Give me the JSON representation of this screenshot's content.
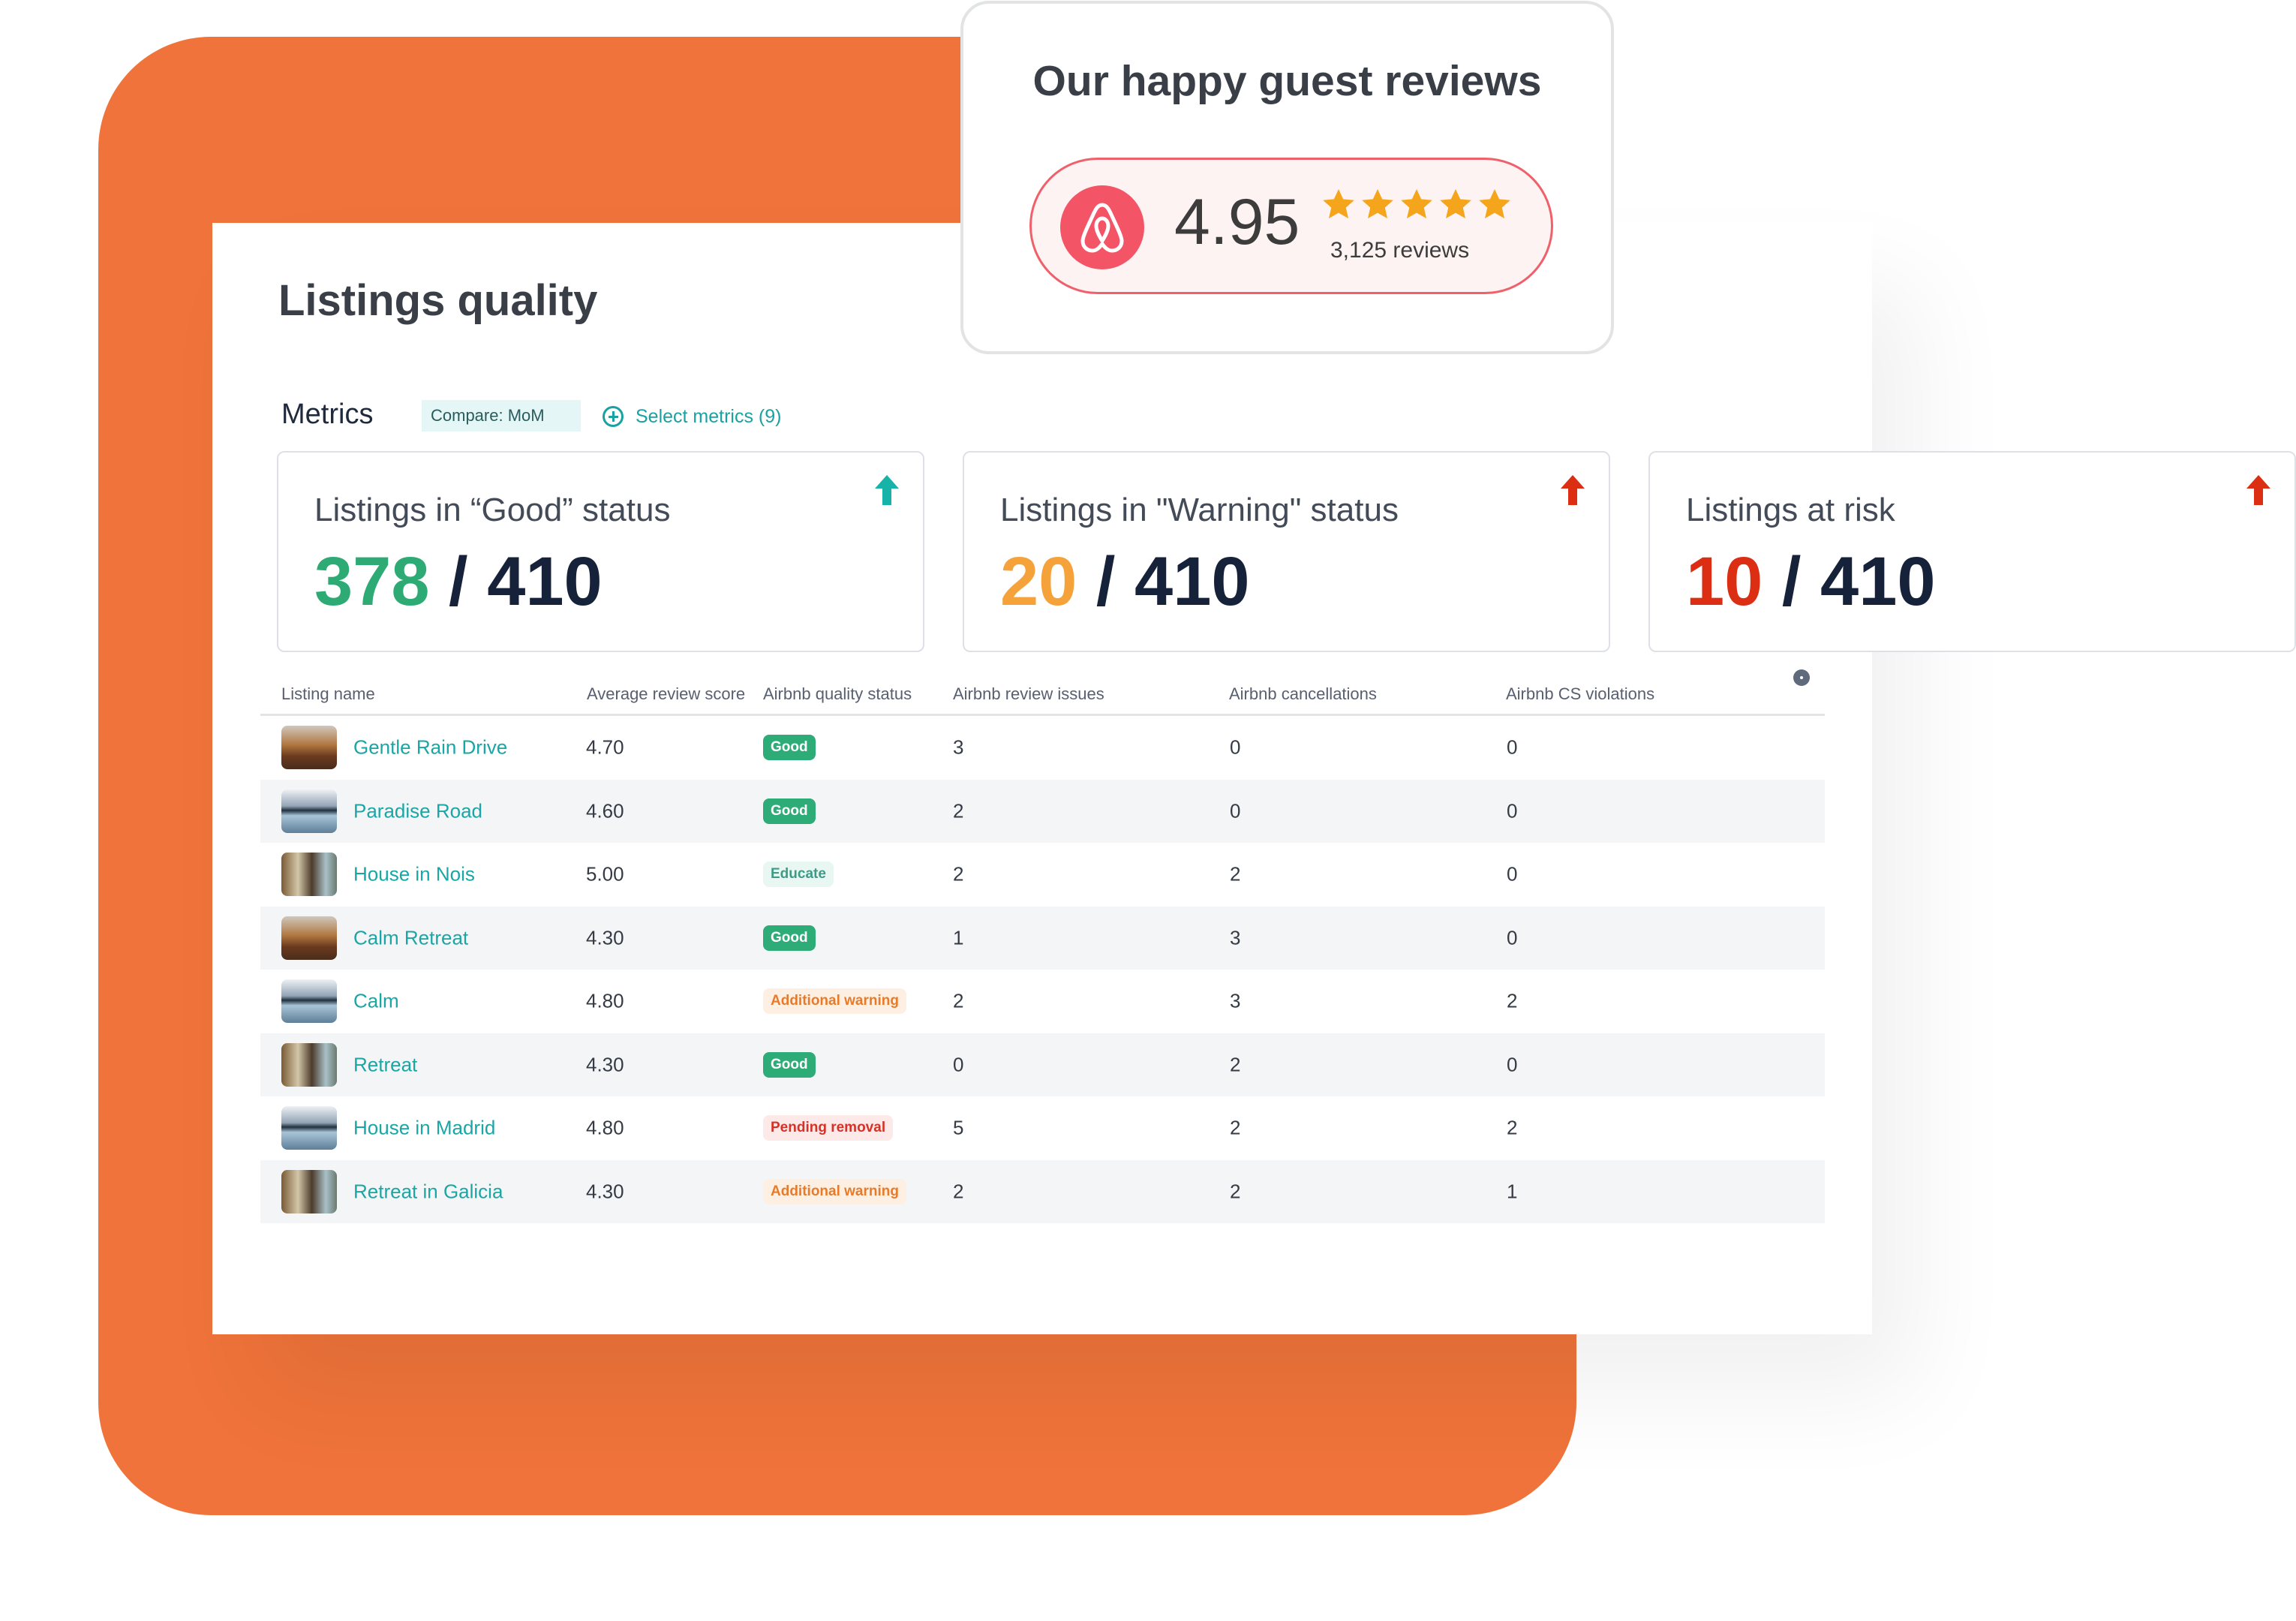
{
  "colors": {
    "brand_orange": "#ef733a",
    "teal": "#1ba6a6",
    "good": "#2eaa74",
    "warning": "#f5a23a",
    "risk": "#db2e13",
    "airbnb": "#f45566"
  },
  "reviews_card": {
    "title": "Our happy guest reviews",
    "logo_icon": "airbnb-logo-icon",
    "rating": "4.95",
    "stars": 5,
    "reviews_count": "3,125 reviews"
  },
  "panel": {
    "title": "Listings quality",
    "metrics_label": "Metrics",
    "compare_chip": "Compare: MoM",
    "select_metrics": "Select metrics (9)"
  },
  "stats": [
    {
      "label": "Listings in “Good” status",
      "value": "378",
      "separator": " / ",
      "total": "410",
      "trend": "up",
      "trend_color": "#18b3a8"
    },
    {
      "label": "Listings in \"Warning\" status",
      "value": "20",
      "separator": " / ",
      "total": "410",
      "trend": "up",
      "trend_color": "#db2e13"
    },
    {
      "label": "Listings at risk",
      "value": "10",
      "separator": " / ",
      "total": "410",
      "trend": "up",
      "trend_color": "#db2e13"
    }
  ],
  "table": {
    "columns": [
      "Listing name",
      "Average review score",
      "Airbnb quality status",
      "Airbnb review issues",
      "Airbnb cancellations",
      "Airbnb CS violations"
    ],
    "rows": [
      {
        "name": "Gentle Rain Drive",
        "score": "4.70",
        "status": "Good",
        "status_kind": "good",
        "issues": "3",
        "cancellations": "0",
        "cs_violations": "0",
        "thumb": "t1"
      },
      {
        "name": "Paradise Road",
        "score": "4.60",
        "status": "Good",
        "status_kind": "good",
        "issues": "2",
        "cancellations": "0",
        "cs_violations": "0",
        "thumb": "t2"
      },
      {
        "name": "House in Nois",
        "score": "5.00",
        "status": "Educate",
        "status_kind": "educate",
        "issues": "2",
        "cancellations": "2",
        "cs_violations": "0",
        "thumb": "t3"
      },
      {
        "name": "Calm Retreat",
        "score": "4.30",
        "status": "Good",
        "status_kind": "good",
        "issues": "1",
        "cancellations": "3",
        "cs_violations": "0",
        "thumb": "t1"
      },
      {
        "name": "Calm",
        "score": "4.80",
        "status": "Additional warning",
        "status_kind": "warning",
        "issues": "2",
        "cancellations": "3",
        "cs_violations": "2",
        "thumb": "t2"
      },
      {
        "name": "Retreat",
        "score": "4.30",
        "status": "Good",
        "status_kind": "good",
        "issues": "0",
        "cancellations": "2",
        "cs_violations": "0",
        "thumb": "t3"
      },
      {
        "name": "House in Madrid",
        "score": "4.80",
        "status": "Pending removal",
        "status_kind": "pending",
        "issues": "5",
        "cancellations": "2",
        "cs_violations": "2",
        "thumb": "t2"
      },
      {
        "name": "Retreat in Galicia",
        "score": "4.30",
        "status": "Additional warning",
        "status_kind": "warning",
        "issues": "2",
        "cancellations": "2",
        "cs_violations": "1",
        "thumb": "t3"
      }
    ]
  }
}
